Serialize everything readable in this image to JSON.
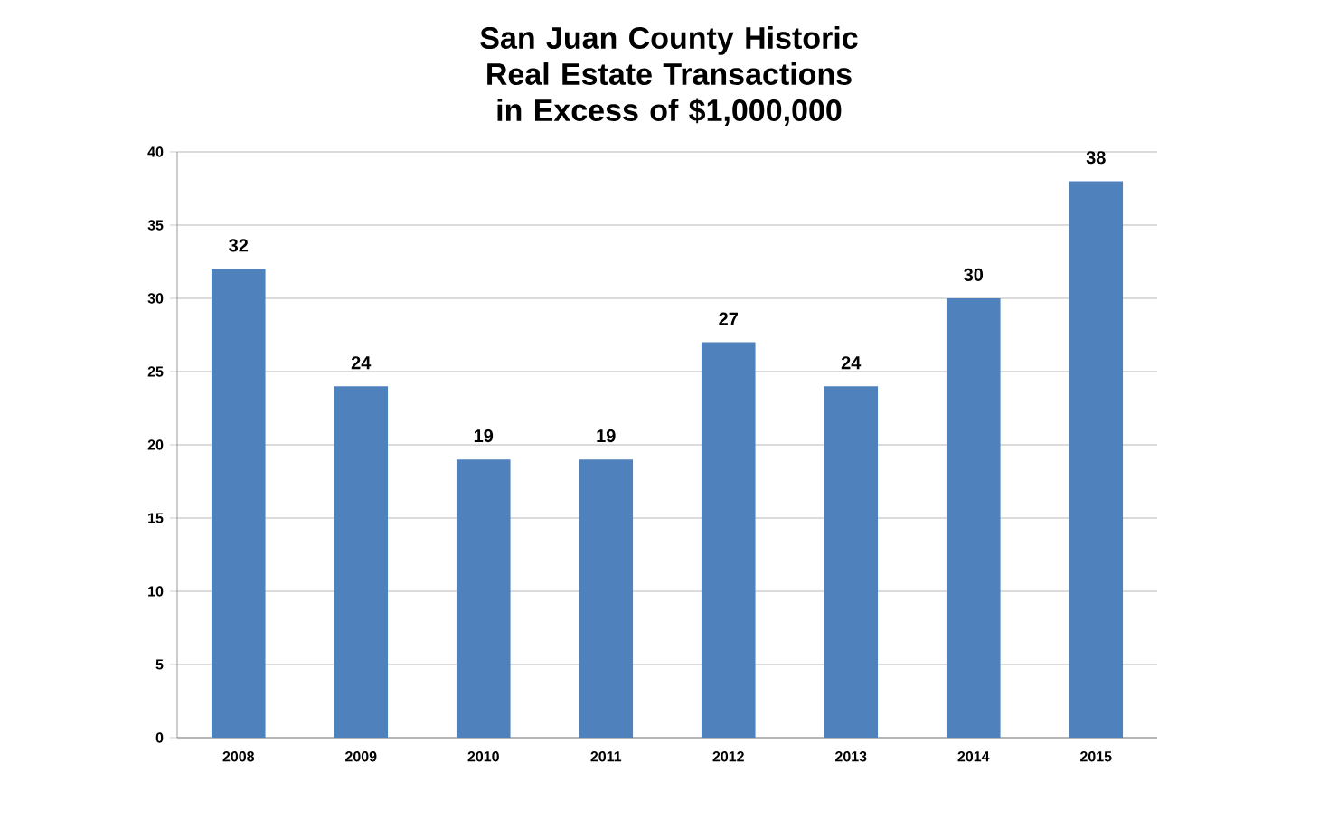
{
  "chart_data": {
    "type": "bar",
    "title": "San Juan County Historic Real Estate Transactions in Excess of $1,000,000",
    "categories": [
      "2008",
      "2009",
      "2010",
      "2011",
      "2012",
      "2013",
      "2014",
      "2015"
    ],
    "values": [
      32,
      24,
      19,
      19,
      27,
      24,
      30,
      38
    ],
    "color": "#4f81bd",
    "ylim": [
      0,
      40
    ],
    "yticks": [
      0,
      5,
      10,
      15,
      20,
      25,
      30,
      35,
      40
    ],
    "grid": "y",
    "data_labels": true
  }
}
